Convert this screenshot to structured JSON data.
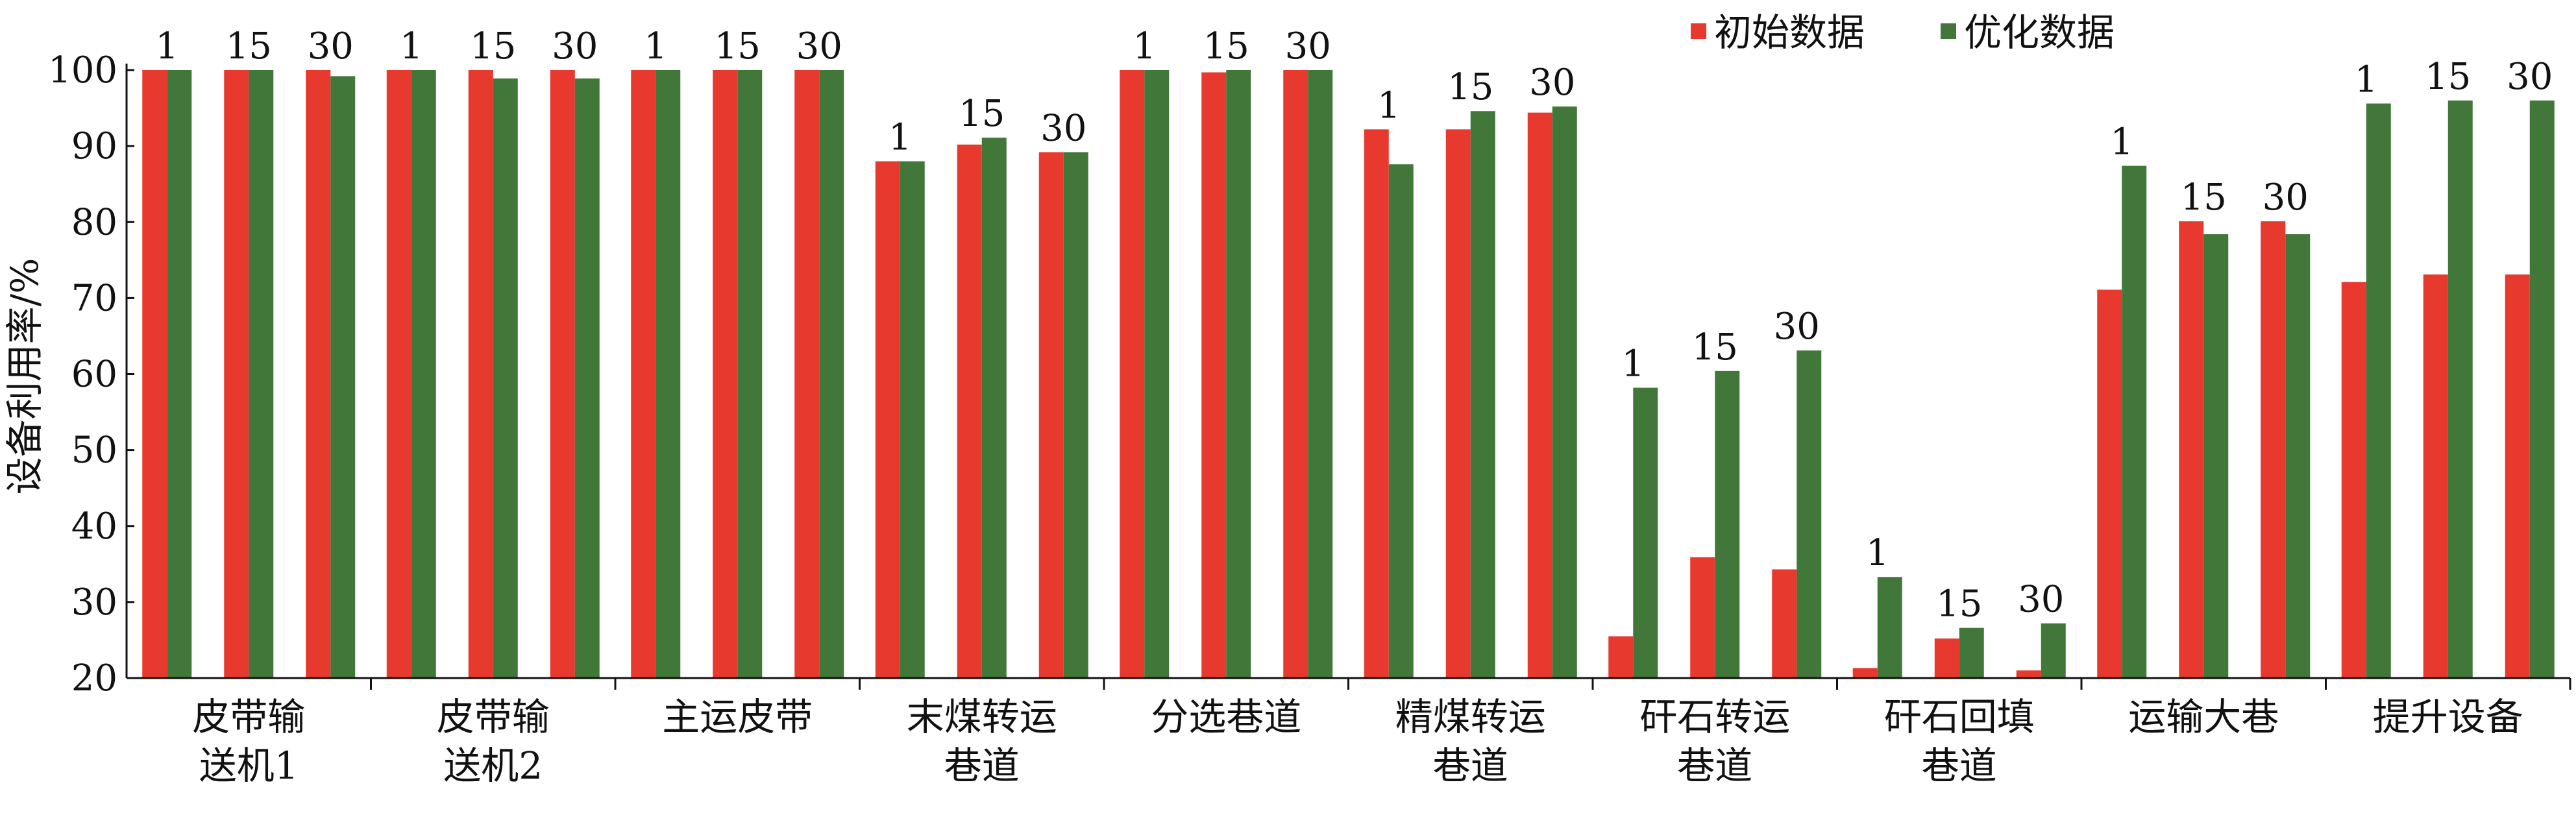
{
  "chart_data": {
    "type": "bar",
    "ylabel": "设备利用率/%",
    "ylim": [
      20,
      100
    ],
    "yticks": [
      20,
      30,
      40,
      50,
      60,
      70,
      80,
      90,
      100
    ],
    "legend_position": "top-right",
    "groups": [
      {
        "lines": [
          "皮带输",
          "送机1"
        ]
      },
      {
        "lines": [
          "皮带输",
          "送机2"
        ]
      },
      {
        "lines": [
          "主运皮带"
        ]
      },
      {
        "lines": [
          "末煤转运",
          "巷道"
        ]
      },
      {
        "lines": [
          "分选巷道"
        ]
      },
      {
        "lines": [
          "精煤转运",
          "巷道"
        ]
      },
      {
        "lines": [
          "矸石转运",
          "巷道"
        ]
      },
      {
        "lines": [
          "矸石回填",
          "巷道"
        ]
      },
      {
        "lines": [
          "运输大巷"
        ]
      },
      {
        "lines": [
          "提升设备"
        ]
      }
    ],
    "subcategories": [
      "1",
      "15",
      "30"
    ],
    "series": [
      {
        "name": "初始数据",
        "color": "#e8392f",
        "values": [
          [
            100,
            100,
            100
          ],
          [
            100,
            100,
            100
          ],
          [
            100,
            100,
            100
          ],
          [
            88,
            90.2,
            89.2
          ],
          [
            100,
            99.7,
            100
          ],
          [
            92.2,
            92.2,
            94.4
          ],
          [
            25.5,
            35.9,
            34.3
          ],
          [
            21.3,
            25.2,
            21
          ],
          [
            71.1,
            80.1,
            80.1
          ],
          [
            72.1,
            73.1,
            73.1
          ]
        ]
      },
      {
        "name": "优化数据",
        "color": "#41783a",
        "values": [
          [
            100,
            100,
            99.2
          ],
          [
            100,
            98.9,
            98.9
          ],
          [
            100,
            100,
            100
          ],
          [
            88,
            91.1,
            89.2
          ],
          [
            100,
            100,
            100
          ],
          [
            87.6,
            94.6,
            95.2
          ],
          [
            58.2,
            60.4,
            63.1
          ],
          [
            33.3,
            26.6,
            27.2
          ],
          [
            87.4,
            78.4,
            78.4
          ],
          [
            95.6,
            96,
            96
          ]
        ]
      }
    ]
  }
}
